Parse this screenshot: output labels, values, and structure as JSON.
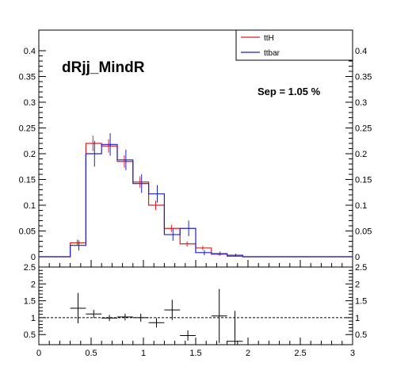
{
  "chart_data": [
    {
      "type": "line",
      "title": "dRjj_MindR",
      "annotation": "Sep = 1.05 %",
      "xlim": [
        0,
        3
      ],
      "ylim": [
        -0.02,
        0.44
      ],
      "x_ticks": [
        "0",
        "0.5",
        "1",
        "1.5",
        "2",
        "2.5",
        "3"
      ],
      "y_ticks": [
        "0",
        "0.05",
        "0.1",
        "0.15",
        "0.2",
        "0.25",
        "0.3",
        "0.35",
        "0.4"
      ],
      "y_ticks_right": [
        "0",
        "0.05",
        "0.1",
        "0.15",
        "0.2",
        "0.25",
        "0.3",
        "0.35",
        "0.4"
      ],
      "legend_position": "top-right",
      "bin_edges": [
        0,
        0.3,
        0.45,
        0.6,
        0.75,
        0.9,
        1.05,
        1.2,
        1.35,
        1.5,
        1.65,
        1.8,
        1.95,
        2.1,
        2.4,
        3.0
      ],
      "series": [
        {
          "name": "ttH",
          "color": "#e41a1c",
          "values": [
            0,
            0.027,
            0.22,
            0.215,
            0.185,
            0.145,
            0.1,
            0.055,
            0.025,
            0.017,
            0.005,
            0.001,
            0,
            0,
            0
          ],
          "errors": [
            0,
            0.006,
            0.015,
            0.013,
            0.012,
            0.011,
            0.009,
            0.007,
            0.005,
            0.004,
            0.002,
            0.001,
            0,
            0,
            0
          ]
        },
        {
          "name": "ttbar",
          "color": "#1f1fcc",
          "values": [
            0,
            0.022,
            0.2,
            0.218,
            0.188,
            0.142,
            0.122,
            0.043,
            0.055,
            0.008,
            0.006,
            0.003,
            0,
            0,
            0
          ],
          "errors": [
            0,
            0.01,
            0.025,
            0.022,
            0.02,
            0.018,
            0.017,
            0.012,
            0.015,
            0.005,
            0.004,
            0.003,
            0,
            0,
            0
          ]
        }
      ]
    },
    {
      "type": "scatter",
      "xlim": [
        0,
        3
      ],
      "ylim": [
        0.2,
        2.5
      ],
      "x_ticks": [
        "0",
        "0.5",
        "1",
        "1.5",
        "2",
        "2.5",
        "3"
      ],
      "y_ticks": [
        "0.5",
        "1",
        "1.5",
        "2",
        "2.5"
      ],
      "y_ticks_right": [
        "0.5",
        "1",
        "1.5",
        "2",
        "2.5"
      ],
      "reference_line": 1,
      "points": [
        {
          "x": 0.375,
          "y": 1.28,
          "xerr": 0.075,
          "yerr": 0.45
        },
        {
          "x": 0.525,
          "y": 1.11,
          "xerr": 0.075,
          "yerr": 0.12
        },
        {
          "x": 0.675,
          "y": 0.99,
          "xerr": 0.075,
          "yerr": 0.09
        },
        {
          "x": 0.825,
          "y": 1.02,
          "xerr": 0.075,
          "yerr": 0.1
        },
        {
          "x": 0.975,
          "y": 1.0,
          "xerr": 0.075,
          "yerr": 0.12
        },
        {
          "x": 1.125,
          "y": 0.85,
          "xerr": 0.075,
          "yerr": 0.14
        },
        {
          "x": 1.275,
          "y": 1.23,
          "xerr": 0.075,
          "yerr": 0.3
        },
        {
          "x": 1.425,
          "y": 0.47,
          "xerr": 0.075,
          "yerr": 0.15
        },
        {
          "x": 1.725,
          "y": 1.05,
          "xerr": 0.075,
          "yerr": 0.8
        },
        {
          "x": 1.875,
          "y": 0.3,
          "xerr": 0.075,
          "yerr": 0.9
        }
      ]
    }
  ]
}
